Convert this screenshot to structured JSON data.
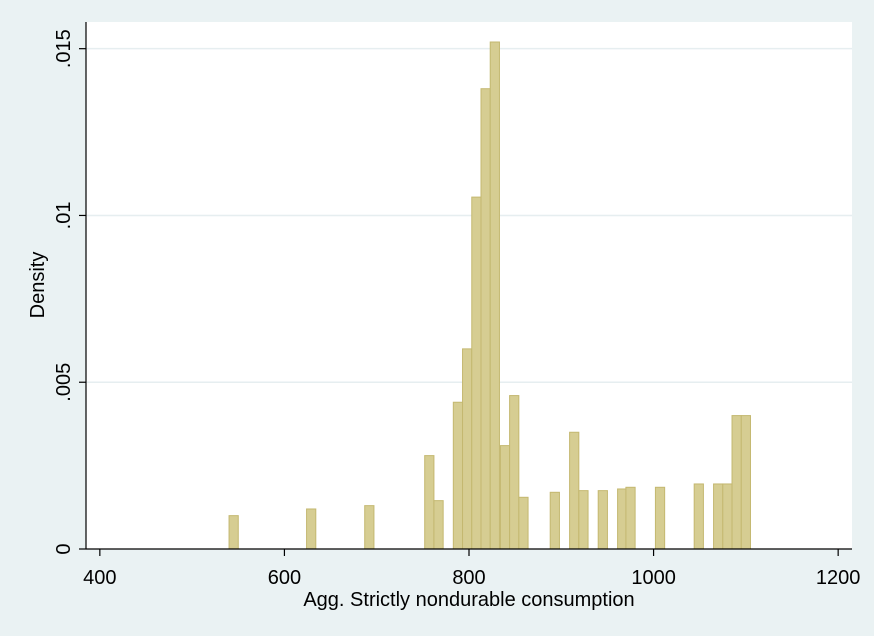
{
  "chart_data": {
    "type": "bar",
    "title": "",
    "xlabel": "Agg. Strictly nondurable consumption",
    "ylabel": "Density",
    "xlim": [
      385,
      1215
    ],
    "ylim": [
      0,
      0.0158
    ],
    "x_ticks": [
      {
        "value": 400,
        "label": "400"
      },
      {
        "value": 600,
        "label": "600"
      },
      {
        "value": 800,
        "label": "800"
      },
      {
        "value": 1000,
        "label": "1000"
      },
      {
        "value": 1200,
        "label": "1200"
      }
    ],
    "y_ticks": [
      {
        "value": 0,
        "label": "0"
      },
      {
        "value": 0.005,
        "label": ".005"
      },
      {
        "value": 0.01,
        "label": ".01"
      },
      {
        "value": 0.015,
        "label": ".015"
      }
    ],
    "grid": true,
    "bin_width": 10,
    "bar_color": "#d6cd92",
    "bar_edge_color": "#c4b870",
    "plot_background": "#ffffff",
    "page_background": "#eaf2f3",
    "bars": [
      {
        "x": 545,
        "density": 0.001
      },
      {
        "x": 629,
        "density": 0.0012
      },
      {
        "x": 692,
        "density": 0.0013
      },
      {
        "x": 757,
        "density": 0.0028
      },
      {
        "x": 767,
        "density": 0.00145
      },
      {
        "x": 788,
        "density": 0.0044
      },
      {
        "x": 798,
        "density": 0.006
      },
      {
        "x": 808,
        "density": 0.01055
      },
      {
        "x": 818,
        "density": 0.0138
      },
      {
        "x": 828,
        "density": 0.0152
      },
      {
        "x": 839,
        "density": 0.0031
      },
      {
        "x": 849,
        "density": 0.0046
      },
      {
        "x": 859,
        "density": 0.00155
      },
      {
        "x": 893,
        "density": 0.0017
      },
      {
        "x": 914,
        "density": 0.0035
      },
      {
        "x": 924,
        "density": 0.00175
      },
      {
        "x": 945,
        "density": 0.00175
      },
      {
        "x": 966,
        "density": 0.0018
      },
      {
        "x": 975,
        "density": 0.00185
      },
      {
        "x": 1007,
        "density": 0.00185
      },
      {
        "x": 1049,
        "density": 0.00195
      },
      {
        "x": 1070,
        "density": 0.00195
      },
      {
        "x": 1080,
        "density": 0.00195
      },
      {
        "x": 1090,
        "density": 0.004
      },
      {
        "x": 1100,
        "density": 0.004
      }
    ]
  }
}
